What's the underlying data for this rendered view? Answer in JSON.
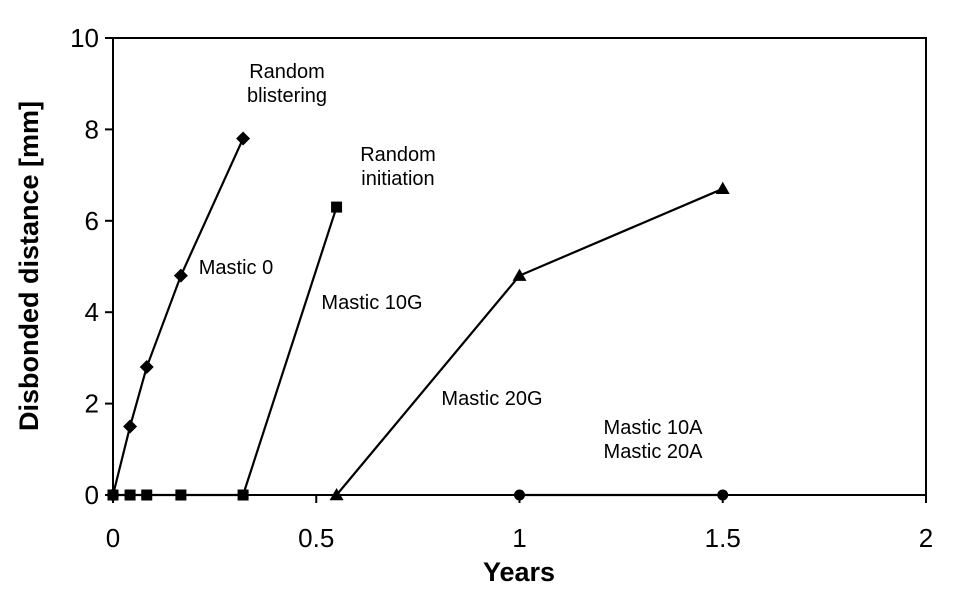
{
  "chart_data": {
    "type": "line",
    "title": "",
    "xlabel": "Years",
    "ylabel": "Disbonded distance [mm]",
    "xlim": [
      0,
      2
    ],
    "ylim": [
      0,
      10
    ],
    "x_ticks": [
      "0",
      "0.5",
      "1",
      "1.5",
      "2"
    ],
    "y_ticks": [
      "0",
      "2",
      "4",
      "6",
      "8",
      "10"
    ],
    "grid": false,
    "legend": "none",
    "series": [
      {
        "marker": "diamond",
        "color": "#000000",
        "x": [
          0,
          0.042,
          0.083,
          0.167,
          0.32
        ],
        "y": [
          0,
          1.5,
          2.8,
          4.8,
          7.8
        ]
      },
      {
        "marker": "square",
        "color": "#000000",
        "x": [
          0,
          0.042,
          0.083,
          0.167,
          0.32,
          0.55
        ],
        "y": [
          0,
          0,
          0,
          0,
          0,
          6.3
        ]
      },
      {
        "marker": "triangle",
        "color": "#000000",
        "x": [
          0.55,
          1.0,
          1.5
        ],
        "y": [
          0,
          4.8,
          6.7
        ]
      },
      {
        "marker": "circle",
        "color": "#000000",
        "x": [
          1.0,
          1.5
        ],
        "y": [
          0,
          0
        ]
      }
    ],
    "annotations": [
      {
        "lines": [
          "Random",
          "blistering"
        ]
      },
      {
        "lines": [
          "Random",
          "initiation"
        ]
      },
      {
        "lines": [
          "Mastic 0"
        ]
      },
      {
        "lines": [
          "Mastic 10G"
        ]
      },
      {
        "lines": [
          "Mastic 20G"
        ]
      },
      {
        "lines": [
          "Mastic 10A",
          "Mastic 20A"
        ]
      }
    ]
  }
}
